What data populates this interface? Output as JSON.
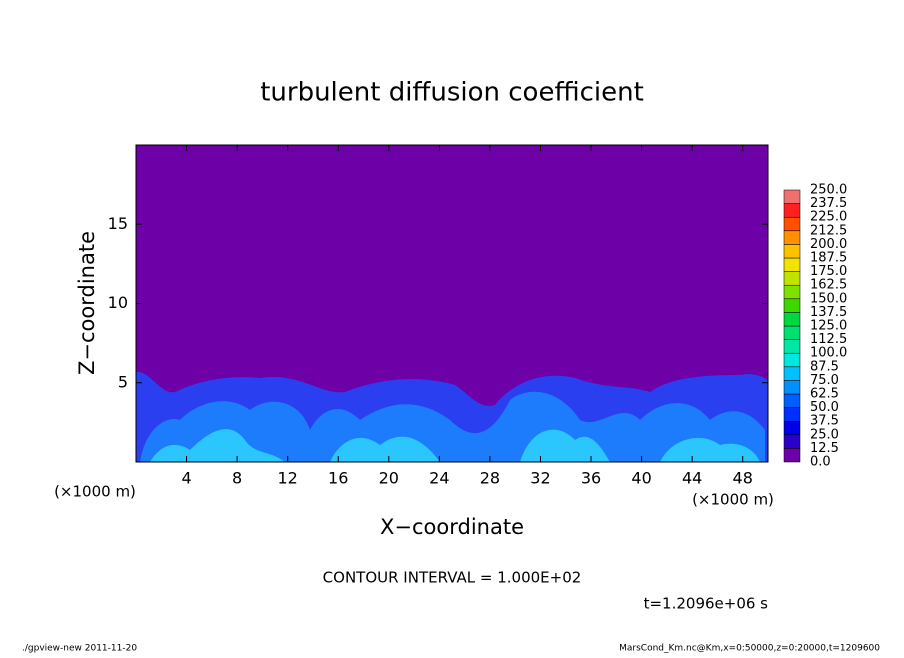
{
  "chart_data": {
    "type": "contour",
    "title": "turbulent diffusion coefficient",
    "xlabel": "X−coordinate",
    "ylabel": "Z−coordinate",
    "x_unit": "(×1000 m)",
    "y_unit": "(×1000 m)",
    "xlim": [
      0,
      50
    ],
    "xticks": [
      4,
      8,
      12,
      16,
      20,
      24,
      28,
      32,
      36,
      40,
      44,
      48
    ],
    "ylim": [
      0,
      20
    ],
    "yticks": [
      5,
      10,
      15
    ],
    "colorbar": {
      "levels": [
        {
          "value": 0,
          "label": "0.0"
        },
        12.5,
        {
          "value": 25,
          "label": "25.0"
        },
        37.5,
        {
          "value": 50,
          "label": "50.0"
        },
        62.5,
        {
          "value": 75,
          "label": "75.0"
        },
        87.5,
        {
          "value": 100,
          "label": "100.0"
        },
        112.5,
        {
          "value": 125,
          "label": "125.0"
        },
        137.5,
        {
          "value": 150,
          "label": "150.0"
        },
        162.5,
        {
          "value": 175,
          "label": "175.0"
        },
        187.5,
        {
          "value": 200,
          "label": "200.0"
        },
        212.5,
        {
          "value": 225,
          "label": "225.0"
        },
        237.5,
        {
          "value": 250,
          "label": "250.0"
        }
      ],
      "colors": [
        "#6e00a8",
        "#2a00c8",
        "#0000e6",
        "#0030ff",
        "#0060ff",
        "#0090ff",
        "#00c0ff",
        "#00e6e0",
        "#00e6a8",
        "#00e070",
        "#00d840",
        "#3cd800",
        "#80e000",
        "#c0e400",
        "#f0e400",
        "#ffc000",
        "#ff9000",
        "#ff5000",
        "#ff2020",
        "#f07070"
      ]
    },
    "contour_interval": "CONTOUR INTERVAL = 1.000E+02",
    "time": "t=1.2096e+06 s",
    "footer_left": "./gpview-new   2011-11-20",
    "footer_right": "MarsCond_Km.nc@Km,x=0:50000,z=0:20000,t=1209600"
  }
}
